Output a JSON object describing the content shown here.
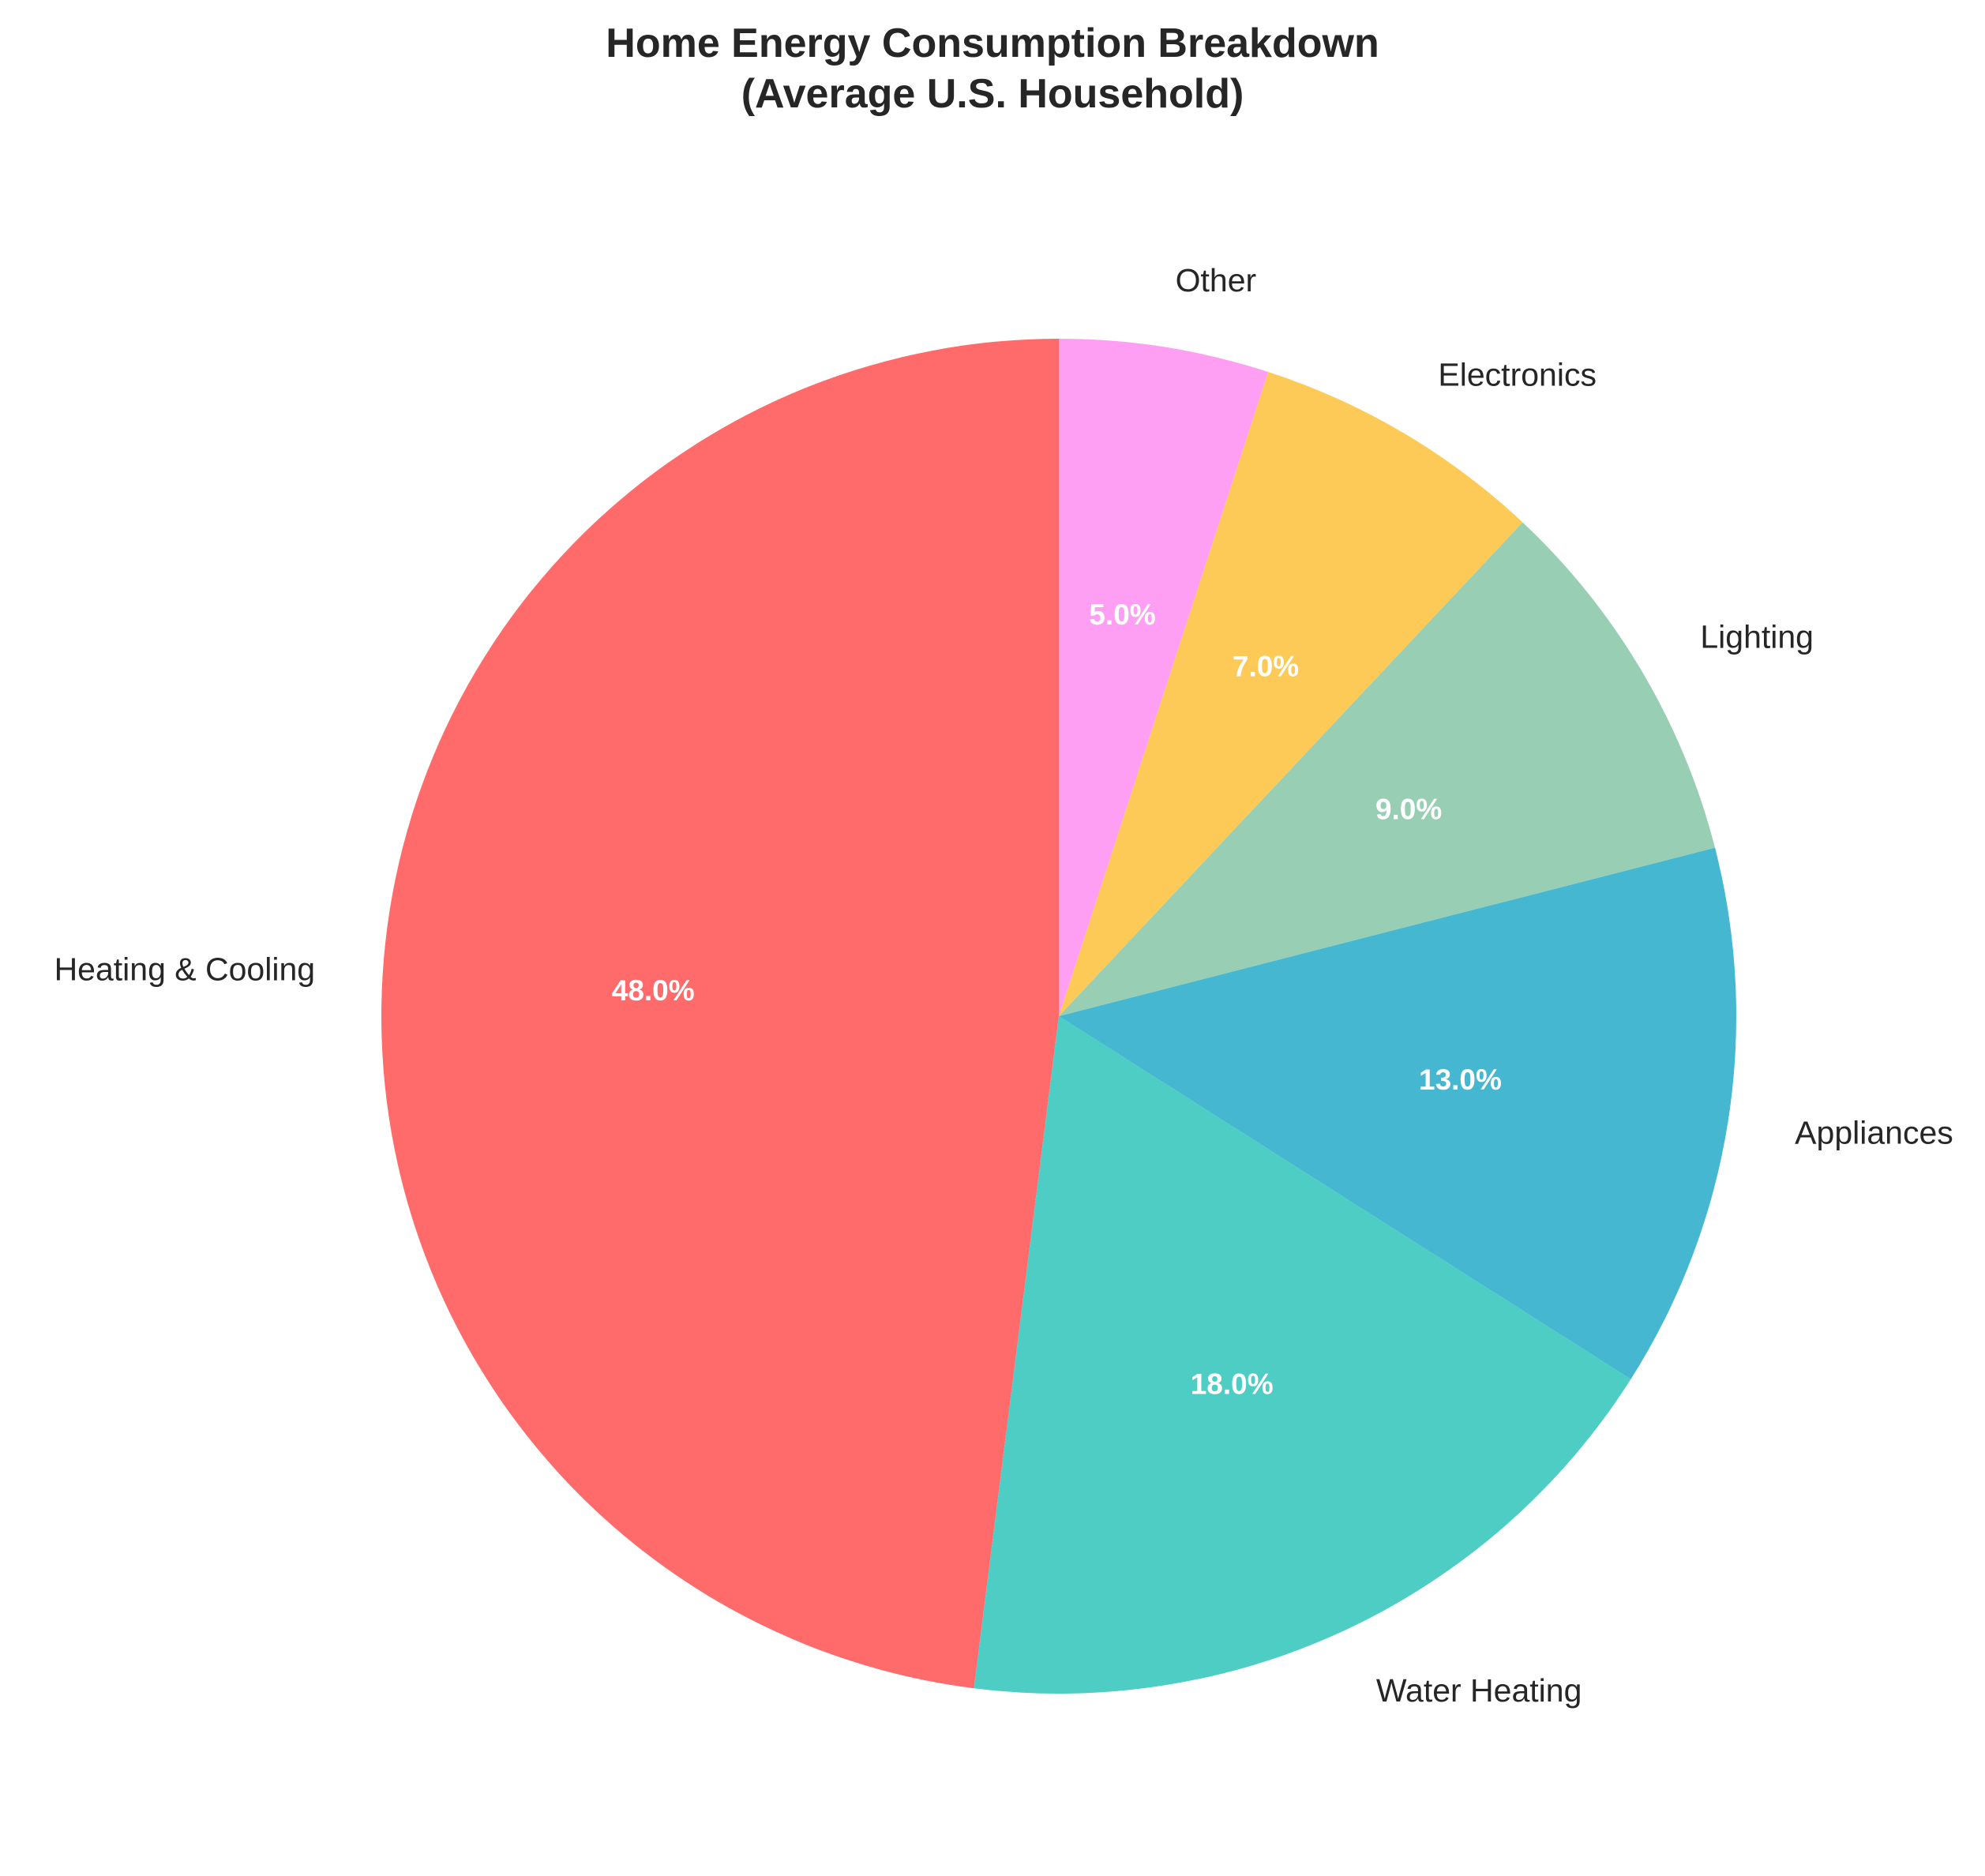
{
  "chart_data": {
    "type": "pie",
    "title_lines": [
      "Home Energy Consumption Breakdown",
      "(Average U.S. Household)"
    ],
    "start_angle_deg": 90,
    "direction": "counterclockwise",
    "slices": [
      {
        "label": "Heating & Cooling",
        "value": 48,
        "pct_label": "48.0%",
        "color": "#FF6B6B"
      },
      {
        "label": "Water Heating",
        "value": 18,
        "pct_label": "18.0%",
        "color": "#4ECDC4"
      },
      {
        "label": "Appliances",
        "value": 13,
        "pct_label": "13.0%",
        "color": "#45B7D1"
      },
      {
        "label": "Lighting",
        "value": 9,
        "pct_label": "9.0%",
        "color": "#98CEB3"
      },
      {
        "label": "Electronics",
        "value": 7,
        "pct_label": "7.0%",
        "color": "#FECA57"
      },
      {
        "label": "Other",
        "value": 5,
        "pct_label": "5.0%",
        "color": "#FF9FF3"
      }
    ]
  }
}
